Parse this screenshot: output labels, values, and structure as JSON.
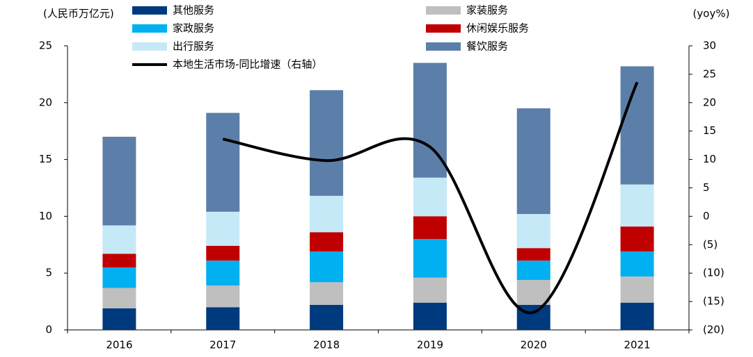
{
  "chart_data": {
    "type": "bar",
    "y_label": "(人民币万亿元)",
    "y2_label": "(yoy%)",
    "categories": [
      "2016",
      "2017",
      "2018",
      "2019",
      "2020",
      "2021"
    ],
    "stacked": true,
    "series": [
      {
        "name": "其他服务",
        "color": "#003a7e",
        "values": [
          1.9,
          2.0,
          2.2,
          2.4,
          2.2,
          2.4
        ]
      },
      {
        "name": "家装服务",
        "color": "#bfbfbf",
        "values": [
          1.8,
          1.9,
          2.0,
          2.2,
          2.2,
          2.3
        ]
      },
      {
        "name": "家政服务",
        "color": "#00b0f0",
        "values": [
          1.8,
          2.2,
          2.7,
          3.4,
          1.7,
          2.2
        ]
      },
      {
        "name": "休闲娱乐服务",
        "color": "#c00000",
        "values": [
          1.2,
          1.3,
          1.7,
          2.0,
          1.1,
          2.2
        ]
      },
      {
        "name": "出行服务",
        "color": "#c5e9f7",
        "values": [
          2.5,
          3.0,
          3.2,
          3.4,
          3.0,
          3.7
        ]
      },
      {
        "name": "餐饮服务",
        "color": "#5b7fa8",
        "values": [
          7.8,
          8.7,
          9.3,
          10.1,
          9.3,
          10.4
        ]
      },
      {
        "name": "本地生活市场-同比增速（右轴）",
        "type": "line",
        "axis": "y2",
        "color": "#000000",
        "values": [
          null,
          13.6,
          9.8,
          12.2,
          -16.9,
          23.6
        ]
      }
    ],
    "ylim": [
      0,
      25
    ],
    "yticks": [
      0,
      5,
      10,
      15,
      20,
      25
    ],
    "y2lim": [
      -20,
      30
    ],
    "y2ticks": [
      {
        "value": -20,
        "label": "(20)"
      },
      {
        "value": -15,
        "label": "(15)"
      },
      {
        "value": -10,
        "label": "(10)"
      },
      {
        "value": -5,
        "label": "(5)"
      },
      0,
      5,
      10,
      15,
      20,
      25,
      30
    ]
  }
}
